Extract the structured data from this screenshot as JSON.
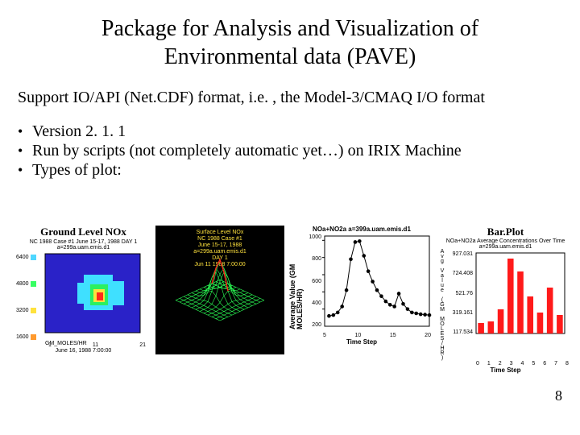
{
  "title_line1": "Package for Analysis and Visualization of",
  "title_line2": "Environmental data (PAVE)",
  "support_text": "Support IO/API (Net.CDF) format, i.e. , the Model-3/CMAQ I/O format",
  "bullets": [
    "Version 2. 1. 1",
    "Run by scripts (not completely automatic yet…) on IRIX Machine",
    "Types of plot:"
  ],
  "page_number": "8",
  "panelA": {
    "title": "Ground Level NOx",
    "subtitle1": "NC 1988 Case #1 June 15-17, 1988   DAY 1",
    "subtitle2": "a=299a.uam.emis.d1",
    "legend_values": [
      "6400",
      "4800",
      "3200",
      "1600"
    ],
    "legend_colors": [
      "#4fd7ff",
      "#37ff63",
      "#ffe23d",
      "#ff9a2e"
    ],
    "heat_colors": {
      "bg": "#2a22c8",
      "cyan": "#3fe0ff",
      "green": "#2bf060",
      "yellow": "#ffe23d",
      "red": "#ff2a1a"
    },
    "x_ticks": [
      "1",
      "11",
      "21"
    ],
    "bottom_caption": "June 16, 1988   7:00:00",
    "units": "GM_MOLES/HR"
  },
  "panelB": {
    "title_lines": [
      "Surface Level NOx",
      "NC 1988 Case #1",
      "June 15-17, 1988",
      "a=299a.uam.emis.d1",
      "DAY 1",
      "Jun 11 1988  7:00:00"
    ],
    "title_color": "#ffe23d",
    "bg": "#000000",
    "mesh_color": "#2bff55",
    "peak_color": "#ff2a1a"
  },
  "panelC": {
    "title": "NOa+NO2a  a=399a.uam.emis.d1",
    "ylabel": "Average Value (GM MOLES/HR)",
    "xlabel": "Time Step",
    "y_ticks": [
      "1000",
      "800",
      "600",
      "400",
      "200"
    ],
    "x_ticks": [
      "5",
      "10",
      "15",
      "20"
    ],
    "points_x": [
      1,
      2,
      3,
      4,
      5,
      6,
      7,
      8,
      9,
      10,
      11,
      12,
      13,
      14,
      15,
      16,
      17,
      18,
      19,
      20,
      21,
      22,
      23,
      24
    ],
    "points_y": [
      120,
      130,
      160,
      230,
      420,
      780,
      980,
      990,
      820,
      640,
      520,
      420,
      350,
      290,
      250,
      230,
      380,
      260,
      200,
      160,
      150,
      140,
      135,
      130
    ],
    "y_max": 1050,
    "footer": "Time Step",
    "marker_color": "#000000"
  },
  "panelD": {
    "title": "Bar.Plot",
    "subtitle": "NOa+NO2a Average Concentrations Over Time",
    "subtitle2": "a=299a.uam.emis.d1",
    "ylabel_stack": [
      "A",
      "v",
      "g",
      " ",
      "V",
      "a",
      "l",
      "u",
      "e",
      " ",
      "(",
      "G",
      "M",
      " ",
      "M",
      "O",
      "L",
      "E",
      "S",
      "/",
      "H",
      "R",
      ")"
    ],
    "y_ticks": [
      "927.031",
      "724.408",
      "521.76",
      "319.161",
      "117.534"
    ],
    "y_max": 1000,
    "x_ticks": [
      "0",
      "1",
      "2",
      "3",
      "4",
      "5",
      "6",
      "7",
      "8"
    ],
    "bars": [
      130,
      150,
      300,
      930,
      770,
      460,
      260,
      570,
      230
    ],
    "bar_color": "#ff1a1a",
    "xlabel": "Time Step"
  }
}
